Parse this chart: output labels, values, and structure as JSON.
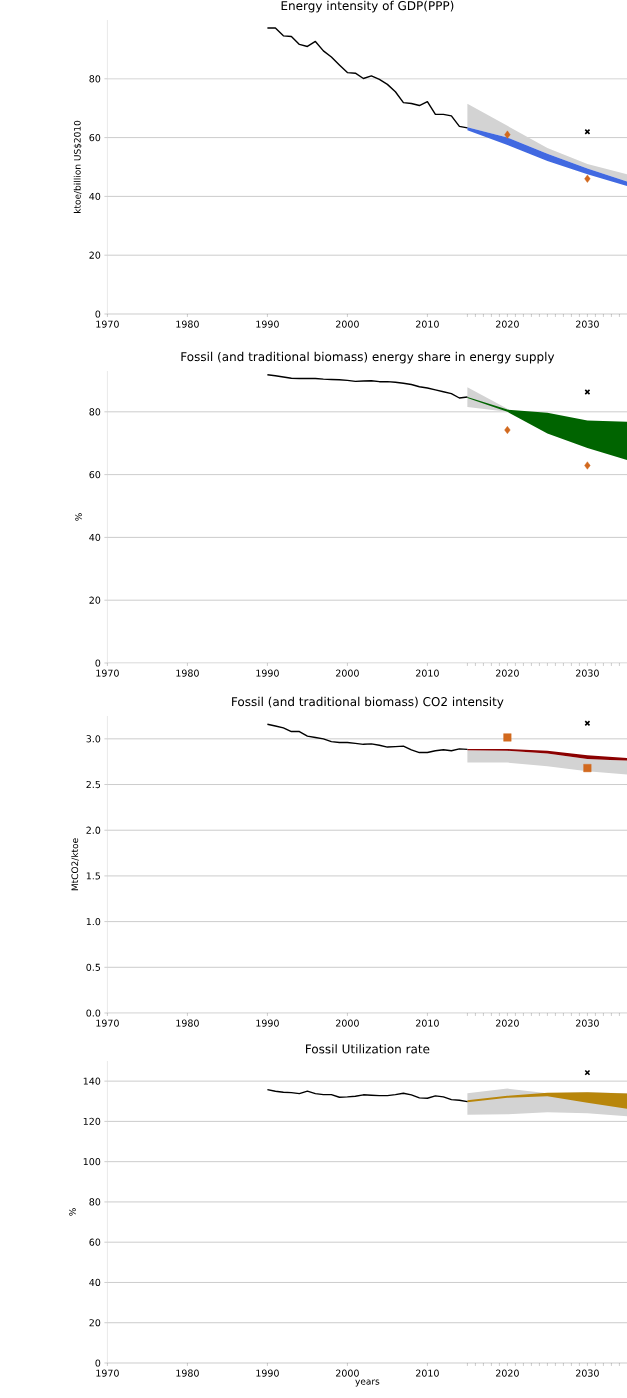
{
  "chart_data": [
    {
      "type": "line",
      "title": "Energy intensity of GDP(PPP)",
      "ylabel": "ktoe/billion US$2010",
      "xlim": [
        1970,
        2035
      ],
      "ylim": [
        0,
        100
      ],
      "grid": "y",
      "xticks": [
        1970,
        1980,
        1990,
        2000,
        2010,
        2020,
        2030,
        {
          "value": 2015,
          "label": null
        },
        {
          "value": 2016,
          "label": null
        },
        {
          "value": 2017,
          "label": null
        },
        {
          "value": 2018,
          "label": null
        },
        {
          "value": 2019,
          "label": null
        },
        {
          "value": 2021,
          "label": null
        },
        {
          "value": 2022,
          "label": null
        },
        {
          "value": 2023,
          "label": null
        },
        {
          "value": 2024,
          "label": null
        },
        {
          "value": 2025,
          "label": null
        },
        {
          "value": 2026,
          "label": null
        },
        {
          "value": 2027,
          "label": null
        },
        {
          "value": 2028,
          "label": null
        },
        {
          "value": 2029,
          "label": null
        },
        {
          "value": 2031,
          "label": null
        },
        {
          "value": 2032,
          "label": null
        },
        {
          "value": 2033,
          "label": null
        },
        {
          "value": 2034,
          "label": null
        }
      ],
      "yticks": [
        0,
        20,
        40,
        60,
        80
      ],
      "series": [
        {
          "type": "line",
          "color": "#d3d3d3",
          "x": [
            2015,
            2020,
            2025,
            2030,
            2035
          ],
          "values": [
            null,
            null,
            null,
            null,
            null
          ],
          "lower": [
            63.5,
            60,
            54.5,
            49.5,
            45
          ],
          "upper": [
            71.5,
            64,
            56.5,
            51,
            47.5
          ]
        },
        {
          "type": "line",
          "color": "#4169e1",
          "x": [
            2015,
            2020,
            2025,
            2030,
            2035
          ],
          "values": [
            null,
            null,
            null,
            null,
            null
          ],
          "lower": [
            62.5,
            57.5,
            52,
            47.5,
            43.5
          ],
          "upper": [
            63.5,
            60,
            54.5,
            49.5,
            45
          ]
        },
        {
          "type": "line",
          "color": "#000000",
          "x": [
            1990,
            1991,
            1992,
            1993,
            1994,
            1995,
            1996,
            1997,
            1998,
            1999,
            2000,
            2001,
            2002,
            2003,
            2004,
            2005,
            2006,
            2007,
            2008,
            2009,
            2010,
            2011,
            2012,
            2013,
            2014,
            2015
          ],
          "values": [
            97.3,
            97.3,
            94.6,
            94.4,
            91.7,
            91.0,
            92.7,
            89.5,
            87.4,
            84.7,
            82.1,
            81.9,
            80.1,
            81.0,
            79.8,
            78.1,
            75.6,
            71.9,
            71.6,
            70.9,
            72.2,
            67.9,
            67.9,
            67.4,
            63.8,
            63.3
          ]
        },
        {
          "type": "scatter",
          "color": "#d2691e",
          "marker": "diamond",
          "x": [
            2020,
            2030
          ],
          "values": [
            61,
            46
          ]
        },
        {
          "type": "scatter",
          "color": "#000000",
          "marker": "cross",
          "x": [
            2030
          ],
          "values": [
            62
          ]
        }
      ]
    },
    {
      "type": "line",
      "title": "Fossil (and traditional biomass) energy share in energy supply",
      "ylabel": "%",
      "xlim": [
        1970,
        2035
      ],
      "ylim": [
        0,
        93
      ],
      "grid": "y",
      "xticks": [
        1970,
        1980,
        1990,
        2000,
        2010,
        2020,
        2030,
        {
          "value": 2015,
          "label": null
        },
        {
          "value": 2016,
          "label": null
        },
        {
          "value": 2017,
          "label": null
        },
        {
          "value": 2018,
          "label": null
        },
        {
          "value": 2019,
          "label": null
        },
        {
          "value": 2021,
          "label": null
        },
        {
          "value": 2022,
          "label": null
        },
        {
          "value": 2023,
          "label": null
        },
        {
          "value": 2024,
          "label": null
        },
        {
          "value": 2025,
          "label": null
        },
        {
          "value": 2026,
          "label": null
        },
        {
          "value": 2027,
          "label": null
        },
        {
          "value": 2028,
          "label": null
        },
        {
          "value": 2029,
          "label": null
        },
        {
          "value": 2031,
          "label": null
        },
        {
          "value": 2032,
          "label": null
        },
        {
          "value": 2033,
          "label": null
        },
        {
          "value": 2034,
          "label": null
        }
      ],
      "yticks": [
        0,
        20,
        40,
        60,
        80
      ],
      "series": [
        {
          "type": "line",
          "color": "#d3d3d3",
          "x": [
            2015,
            2020
          ],
          "values": [
            null,
            null
          ],
          "lower": [
            81.5,
            80.0
          ],
          "upper": [
            87.8,
            81.0
          ]
        },
        {
          "type": "line",
          "color": "#006400",
          "x": [
            2015,
            2020,
            2025,
            2030,
            2035
          ],
          "values": [
            null,
            null,
            null,
            null,
            null
          ],
          "lower": [
            84.4,
            80.0,
            73.1,
            68.5,
            64.6
          ],
          "upper": [
            84.7,
            80.7,
            79.7,
            77.2,
            76.8
          ]
        },
        {
          "type": "line",
          "color": "#000000",
          "x": [
            1990,
            1991,
            1992,
            1993,
            1994,
            1995,
            1996,
            1997,
            1998,
            1999,
            2000,
            2001,
            2002,
            2003,
            2004,
            2005,
            2006,
            2007,
            2008,
            2009,
            2010,
            2011,
            2012,
            2013,
            2014,
            2015
          ],
          "values": [
            91.8,
            91.5,
            91.1,
            90.7,
            90.6,
            90.6,
            90.6,
            90.4,
            90.3,
            90.2,
            90.0,
            89.7,
            89.8,
            89.9,
            89.6,
            89.6,
            89.4,
            89.1,
            88.7,
            88.0,
            87.6,
            87.0,
            86.4,
            85.8,
            84.4,
            84.7
          ]
        },
        {
          "type": "scatter",
          "color": "#d2691e",
          "marker": "diamond",
          "x": [
            2020,
            2030
          ],
          "values": [
            74.2,
            62.9
          ]
        },
        {
          "type": "scatter",
          "color": "#000000",
          "marker": "cross",
          "x": [
            2030
          ],
          "values": [
            86.3
          ]
        }
      ]
    },
    {
      "type": "line",
      "title": "Fossil (and traditional biomass) CO2 intensity",
      "ylabel": "MtCO2/ktoe",
      "xlim": [
        1970,
        2035
      ],
      "ylim": [
        0,
        3.25
      ],
      "grid": "y",
      "xticks": [
        1970,
        1980,
        1990,
        2000,
        2010,
        2020,
        2030,
        {
          "value": 2015,
          "label": null
        },
        {
          "value": 2016,
          "label": null
        },
        {
          "value": 2017,
          "label": null
        },
        {
          "value": 2018,
          "label": null
        },
        {
          "value": 2019,
          "label": null
        },
        {
          "value": 2021,
          "label": null
        },
        {
          "value": 2022,
          "label": null
        },
        {
          "value": 2023,
          "label": null
        },
        {
          "value": 2024,
          "label": null
        },
        {
          "value": 2025,
          "label": null
        },
        {
          "value": 2026,
          "label": null
        },
        {
          "value": 2027,
          "label": null
        },
        {
          "value": 2028,
          "label": null
        },
        {
          "value": 2029,
          "label": null
        },
        {
          "value": 2031,
          "label": null
        },
        {
          "value": 2032,
          "label": null
        },
        {
          "value": 2033,
          "label": null
        },
        {
          "value": 2034,
          "label": null
        }
      ],
      "yticks": [
        {
          "value": 0,
          "label": "0.0"
        },
        {
          "value": 0.5,
          "label": "0.5"
        },
        {
          "value": 1,
          "label": "1.0"
        },
        {
          "value": 1.5,
          "label": "1.5"
        },
        {
          "value": 2,
          "label": "2.0"
        },
        {
          "value": 2.5,
          "label": "2.5"
        },
        {
          "value": 3,
          "label": "3.0"
        }
      ],
      "series": [
        {
          "type": "line",
          "color": "#d3d3d3",
          "x": [
            2015,
            2020,
            2025,
            2030,
            2035
          ],
          "values": [
            null,
            null,
            null,
            null,
            null
          ],
          "lower": [
            2.74,
            2.74,
            2.7,
            2.645,
            2.61
          ],
          "upper": [
            2.875,
            2.87,
            2.84,
            2.78,
            2.76
          ]
        },
        {
          "type": "line",
          "color": "#8b0000",
          "x": [
            2015,
            2020,
            2025,
            2030,
            2035
          ],
          "values": [
            null,
            null,
            null,
            null,
            null
          ],
          "lower": [
            2.875,
            2.87,
            2.84,
            2.78,
            2.76
          ],
          "upper": [
            2.89,
            2.89,
            2.87,
            2.82,
            2.79
          ]
        },
        {
          "type": "line",
          "color": "#000000",
          "x": [
            1990,
            1991,
            1992,
            1993,
            1994,
            1995,
            1996,
            1997,
            1998,
            1999,
            2000,
            2001,
            2002,
            2003,
            2004,
            2005,
            2006,
            2007,
            2008,
            2009,
            2010,
            2011,
            2012,
            2013,
            2014,
            2015
          ],
          "values": [
            3.16,
            3.14,
            3.12,
            3.08,
            3.08,
            3.03,
            3.015,
            3.0,
            2.97,
            2.96,
            2.96,
            2.95,
            2.94,
            2.945,
            2.93,
            2.91,
            2.915,
            2.92,
            2.88,
            2.85,
            2.85,
            2.87,
            2.88,
            2.87,
            2.89,
            2.885
          ]
        },
        {
          "type": "scatter",
          "color": "#d2691e",
          "marker": "square",
          "x": [
            2020,
            2030
          ],
          "values": [
            3.015,
            2.68
          ]
        },
        {
          "type": "scatter",
          "color": "#000000",
          "marker": "cross",
          "x": [
            2030
          ],
          "values": [
            3.17
          ]
        }
      ]
    },
    {
      "type": "line",
      "title": "Fossil Utilization rate",
      "xlabel": "years",
      "ylabel": "%",
      "xlim": [
        1970,
        2035
      ],
      "ylim": [
        0,
        150
      ],
      "grid": "y",
      "xticks": [
        1970,
        1980,
        1990,
        2000,
        2010,
        2020,
        2030,
        {
          "value": 2015,
          "label": null
        },
        {
          "value": 2016,
          "label": null
        },
        {
          "value": 2017,
          "label": null
        },
        {
          "value": 2018,
          "label": null
        },
        {
          "value": 2019,
          "label": null
        },
        {
          "value": 2021,
          "label": null
        },
        {
          "value": 2022,
          "label": null
        },
        {
          "value": 2023,
          "label": null
        },
        {
          "value": 2024,
          "label": null
        },
        {
          "value": 2025,
          "label": null
        },
        {
          "value": 2026,
          "label": null
        },
        {
          "value": 2027,
          "label": null
        },
        {
          "value": 2028,
          "label": null
        },
        {
          "value": 2029,
          "label": null
        },
        {
          "value": 2031,
          "label": null
        },
        {
          "value": 2032,
          "label": null
        },
        {
          "value": 2033,
          "label": null
        },
        {
          "value": 2034,
          "label": null
        }
      ],
      "yticks": [
        0,
        20,
        40,
        60,
        80,
        100,
        120,
        140
      ],
      "series": [
        {
          "type": "line",
          "color": "#d3d3d3",
          "x": [
            2015,
            2020,
            2025,
            2030,
            2035
          ],
          "values": [
            null,
            null,
            null,
            null,
            null
          ],
          "lower": [
            123.3,
            123.5,
            124.5,
            124.0,
            122.5
          ],
          "upper": [
            134.0,
            136.3,
            134.0,
            134.5,
            134.0
          ]
        },
        {
          "type": "line",
          "color": "#b8860b",
          "x": [
            2015,
            2020,
            2025,
            2030,
            2035
          ],
          "values": [
            null,
            null,
            null,
            null,
            null
          ],
          "lower": [
            129.5,
            131.7,
            132.5,
            129.3,
            126.3
          ],
          "upper": [
            130.5,
            132.7,
            134.2,
            134.5,
            133.8
          ]
        },
        {
          "type": "line",
          "color": "#000000",
          "x": [
            1990,
            1991,
            1992,
            1993,
            1994,
            1995,
            1996,
            1997,
            1998,
            1999,
            2000,
            2001,
            2002,
            2003,
            2004,
            2005,
            2006,
            2007,
            2008,
            2009,
            2010,
            2011,
            2012,
            2013,
            2014,
            2015
          ],
          "values": [
            135.8,
            135.0,
            134.5,
            134.3,
            133.8,
            135.0,
            133.8,
            133.3,
            133.3,
            132.0,
            132.2,
            132.5,
            133.2,
            133.0,
            132.8,
            132.8,
            133.3,
            134.0,
            133.2,
            131.7,
            131.5,
            132.7,
            132.2,
            130.8,
            130.5,
            129.8
          ]
        },
        {
          "type": "scatter",
          "color": "#000000",
          "marker": "cross",
          "x": [
            2030
          ],
          "values": [
            144.2
          ]
        }
      ]
    }
  ]
}
